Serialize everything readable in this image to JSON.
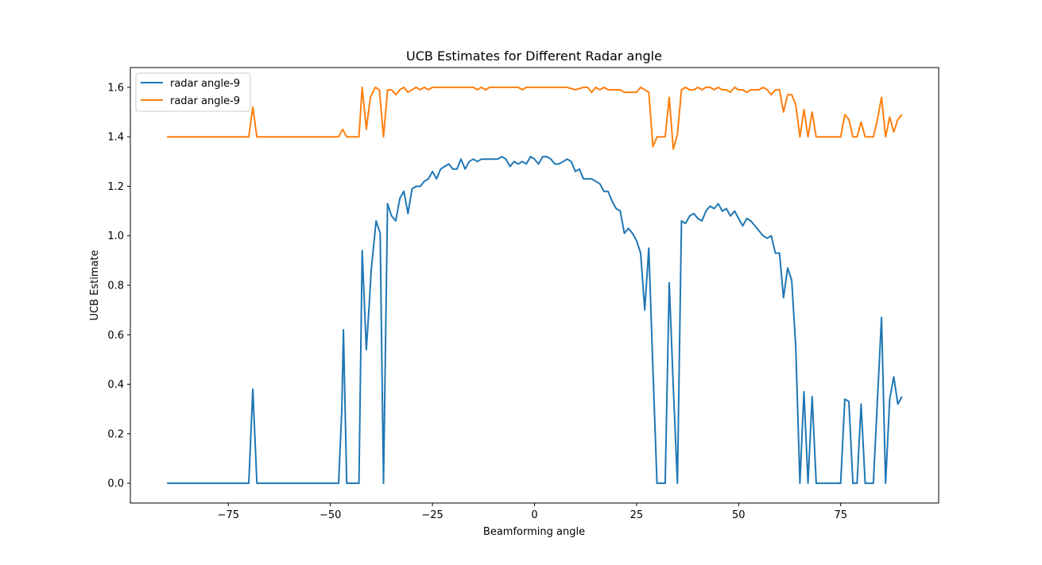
{
  "chart_data": {
    "type": "line",
    "title": "UCB Estimates for Different Radar angle",
    "xlabel": "Beamforming angle",
    "ylabel": "UCB Estimate",
    "xlim": [
      -99,
      99
    ],
    "ylim": [
      -0.08,
      1.68
    ],
    "xticks": [
      -75,
      -50,
      -25,
      0,
      25,
      50,
      75
    ],
    "xtick_labels": [
      "−75",
      "−50",
      "−25",
      "0",
      "25",
      "50",
      "75"
    ],
    "yticks": [
      0.0,
      0.2,
      0.4,
      0.6,
      0.8,
      1.0,
      1.2,
      1.4,
      1.6
    ],
    "ytick_labels": [
      "0.0",
      "0.2",
      "0.4",
      "0.6",
      "0.8",
      "1.0",
      "1.2",
      "1.4",
      "1.6"
    ],
    "grid": false,
    "legend_position": "top-left",
    "series": [
      {
        "name": "radar angle-9",
        "color": "#1f77b4",
        "points": [
          [
            -90,
            0.0
          ],
          [
            -70,
            0.0
          ],
          [
            -69,
            0.38
          ],
          [
            -68,
            0.0
          ],
          [
            -48,
            0.0
          ],
          [
            -47.2,
            0.3
          ],
          [
            -46.8,
            0.62
          ],
          [
            -46,
            0.0
          ],
          [
            -43,
            0.0
          ],
          [
            -42.2,
            0.94
          ],
          [
            -41.2,
            0.54
          ],
          [
            -40.5,
            0.72
          ],
          [
            -40,
            0.86
          ],
          [
            -38.8,
            1.06
          ],
          [
            -37.8,
            1.01
          ],
          [
            -37,
            0.0
          ],
          [
            -36,
            1.13
          ],
          [
            -35,
            1.08
          ],
          [
            -34,
            1.06
          ],
          [
            -33,
            1.15
          ],
          [
            -32,
            1.18
          ],
          [
            -31,
            1.09
          ],
          [
            -30,
            1.19
          ],
          [
            -29,
            1.2
          ],
          [
            -28,
            1.2
          ],
          [
            -27,
            1.22
          ],
          [
            -26,
            1.23
          ],
          [
            -25,
            1.26
          ],
          [
            -24,
            1.23
          ],
          [
            -23,
            1.27
          ],
          [
            -22,
            1.28
          ],
          [
            -21,
            1.29
          ],
          [
            -20,
            1.27
          ],
          [
            -19,
            1.27
          ],
          [
            -18,
            1.31
          ],
          [
            -17,
            1.27
          ],
          [
            -16,
            1.3
          ],
          [
            -15,
            1.31
          ],
          [
            -14,
            1.3
          ],
          [
            -13,
            1.31
          ],
          [
            -12,
            1.31
          ],
          [
            -11,
            1.31
          ],
          [
            -10,
            1.31
          ],
          [
            -9,
            1.31
          ],
          [
            -8,
            1.32
          ],
          [
            -7,
            1.31
          ],
          [
            -6,
            1.28
          ],
          [
            -5,
            1.3
          ],
          [
            -4,
            1.29
          ],
          [
            -3,
            1.3
          ],
          [
            -2,
            1.29
          ],
          [
            -1,
            1.32
          ],
          [
            0,
            1.31
          ],
          [
            1,
            1.29
          ],
          [
            2,
            1.32
          ],
          [
            3,
            1.32
          ],
          [
            4,
            1.31
          ],
          [
            5,
            1.29
          ],
          [
            6,
            1.29
          ],
          [
            7,
            1.3
          ],
          [
            8,
            1.31
          ],
          [
            9,
            1.3
          ],
          [
            10,
            1.26
          ],
          [
            11,
            1.27
          ],
          [
            12,
            1.23
          ],
          [
            13,
            1.23
          ],
          [
            14,
            1.23
          ],
          [
            15,
            1.22
          ],
          [
            16,
            1.21
          ],
          [
            17,
            1.18
          ],
          [
            18,
            1.18
          ],
          [
            19,
            1.14
          ],
          [
            20,
            1.11
          ],
          [
            21,
            1.1
          ],
          [
            22,
            1.01
          ],
          [
            23,
            1.03
          ],
          [
            24,
            1.01
          ],
          [
            25,
            0.98
          ],
          [
            26,
            0.93
          ],
          [
            27,
            0.7
          ],
          [
            28,
            0.95
          ],
          [
            29,
            0.46
          ],
          [
            30,
            0.0
          ],
          [
            32,
            0.0
          ],
          [
            33,
            0.81
          ],
          [
            34,
            0.39
          ],
          [
            35,
            0.0
          ],
          [
            36,
            1.06
          ],
          [
            37,
            1.05
          ],
          [
            38,
            1.08
          ],
          [
            39,
            1.09
          ],
          [
            40,
            1.07
          ],
          [
            41,
            1.06
          ],
          [
            42,
            1.1
          ],
          [
            43,
            1.12
          ],
          [
            44,
            1.11
          ],
          [
            45,
            1.13
          ],
          [
            46,
            1.1
          ],
          [
            47,
            1.11
          ],
          [
            48,
            1.08
          ],
          [
            49,
            1.1
          ],
          [
            50,
            1.07
          ],
          [
            51,
            1.04
          ],
          [
            52,
            1.07
          ],
          [
            53,
            1.06
          ],
          [
            54,
            1.04
          ],
          [
            55,
            1.02
          ],
          [
            56,
            1.0
          ],
          [
            57,
            0.99
          ],
          [
            58,
            1.0
          ],
          [
            59,
            0.93
          ],
          [
            60,
            0.93
          ],
          [
            61,
            0.75
          ],
          [
            62,
            0.87
          ],
          [
            63,
            0.82
          ],
          [
            64,
            0.55
          ],
          [
            65,
            0.0
          ],
          [
            66,
            0.37
          ],
          [
            67,
            0.0
          ],
          [
            68,
            0.35
          ],
          [
            69,
            0.0
          ],
          [
            75,
            0.0
          ],
          [
            76,
            0.34
          ],
          [
            77,
            0.33
          ],
          [
            78,
            0.0
          ],
          [
            79,
            0.0
          ],
          [
            80,
            0.32
          ],
          [
            81,
            0.0
          ],
          [
            83,
            0.0
          ],
          [
            84,
            0.34
          ],
          [
            85,
            0.67
          ],
          [
            86,
            0.0
          ],
          [
            87,
            0.34
          ],
          [
            88,
            0.43
          ],
          [
            89,
            0.32
          ],
          [
            90,
            0.35
          ]
        ]
      },
      {
        "name": "radar angle-9",
        "color": "#ff7f0e",
        "points": [
          [
            -90,
            1.4
          ],
          [
            -70,
            1.4
          ],
          [
            -69,
            1.52
          ],
          [
            -68,
            1.4
          ],
          [
            -48,
            1.4
          ],
          [
            -47,
            1.43
          ],
          [
            -46,
            1.4
          ],
          [
            -43,
            1.4
          ],
          [
            -42.2,
            1.6
          ],
          [
            -41.2,
            1.43
          ],
          [
            -40.2,
            1.56
          ],
          [
            -39,
            1.6
          ],
          [
            -38,
            1.59
          ],
          [
            -37,
            1.4
          ],
          [
            -36,
            1.59
          ],
          [
            -35,
            1.59
          ],
          [
            -34,
            1.57
          ],
          [
            -33,
            1.59
          ],
          [
            -32,
            1.6
          ],
          [
            -31,
            1.58
          ],
          [
            -30,
            1.59
          ],
          [
            -29,
            1.6
          ],
          [
            -28,
            1.59
          ],
          [
            -27,
            1.6
          ],
          [
            -26,
            1.59
          ],
          [
            -25,
            1.6
          ],
          [
            -24,
            1.6
          ],
          [
            -23,
            1.6
          ],
          [
            -22,
            1.6
          ],
          [
            -20,
            1.6
          ],
          [
            -15,
            1.6
          ],
          [
            -14,
            1.59
          ],
          [
            -13,
            1.6
          ],
          [
            -12,
            1.59
          ],
          [
            -11,
            1.6
          ],
          [
            -10,
            1.6
          ],
          [
            -8,
            1.6
          ],
          [
            -6,
            1.6
          ],
          [
            -4,
            1.6
          ],
          [
            -3,
            1.59
          ],
          [
            -2,
            1.6
          ],
          [
            0,
            1.6
          ],
          [
            2,
            1.6
          ],
          [
            4,
            1.6
          ],
          [
            6,
            1.6
          ],
          [
            8,
            1.6
          ],
          [
            10,
            1.59
          ],
          [
            12,
            1.6
          ],
          [
            13,
            1.6
          ],
          [
            14,
            1.58
          ],
          [
            15,
            1.6
          ],
          [
            16,
            1.59
          ],
          [
            17,
            1.6
          ],
          [
            18,
            1.59
          ],
          [
            19,
            1.59
          ],
          [
            20,
            1.59
          ],
          [
            21,
            1.59
          ],
          [
            22,
            1.58
          ],
          [
            23,
            1.58
          ],
          [
            24,
            1.58
          ],
          [
            25,
            1.58
          ],
          [
            26,
            1.6
          ],
          [
            27,
            1.59
          ],
          [
            28,
            1.58
          ],
          [
            29,
            1.36
          ],
          [
            30,
            1.4
          ],
          [
            31,
            1.4
          ],
          [
            32,
            1.4
          ],
          [
            33,
            1.56
          ],
          [
            34,
            1.35
          ],
          [
            35,
            1.41
          ],
          [
            36,
            1.59
          ],
          [
            37,
            1.6
          ],
          [
            38,
            1.59
          ],
          [
            39,
            1.59
          ],
          [
            40,
            1.6
          ],
          [
            41,
            1.59
          ],
          [
            42,
            1.6
          ],
          [
            43,
            1.6
          ],
          [
            44,
            1.59
          ],
          [
            45,
            1.6
          ],
          [
            46,
            1.59
          ],
          [
            47,
            1.59
          ],
          [
            48,
            1.58
          ],
          [
            49,
            1.6
          ],
          [
            50,
            1.59
          ],
          [
            51,
            1.59
          ],
          [
            52,
            1.58
          ],
          [
            53,
            1.59
          ],
          [
            54,
            1.59
          ],
          [
            55,
            1.59
          ],
          [
            56,
            1.6
          ],
          [
            57,
            1.59
          ],
          [
            58,
            1.57
          ],
          [
            59,
            1.59
          ],
          [
            60,
            1.59
          ],
          [
            61,
            1.5
          ],
          [
            62,
            1.57
          ],
          [
            63,
            1.57
          ],
          [
            64,
            1.53
          ],
          [
            65,
            1.4
          ],
          [
            66,
            1.51
          ],
          [
            67,
            1.4
          ],
          [
            68,
            1.5
          ],
          [
            69,
            1.4
          ],
          [
            75,
            1.4
          ],
          [
            76,
            1.49
          ],
          [
            77,
            1.47
          ],
          [
            78,
            1.4
          ],
          [
            79,
            1.4
          ],
          [
            80,
            1.46
          ],
          [
            81,
            1.4
          ],
          [
            83,
            1.4
          ],
          [
            84,
            1.47
          ],
          [
            85,
            1.56
          ],
          [
            86,
            1.4
          ],
          [
            87,
            1.48
          ],
          [
            88,
            1.42
          ],
          [
            89,
            1.47
          ],
          [
            90,
            1.49
          ]
        ]
      }
    ]
  }
}
